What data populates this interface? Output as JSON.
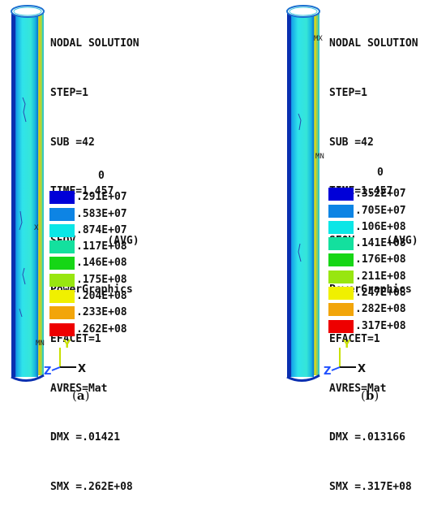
{
  "panels": [
    {
      "id": "a",
      "header": [
        "NODAL SOLUTION",
        "STEP=1",
        "SUB =42",
        "TIME=1.457",
        "SEQV     (AVG)",
        "PowerGraphics",
        "EFACET=1",
        "AVRES=Mat",
        "DMX =.01421",
        "SMX =.262E+08"
      ],
      "legend": [
        "0",
        ".291E+07",
        ".583E+07",
        ".874E+07",
        ".117E+08",
        ".146E+08",
        ".175E+08",
        ".204E+08",
        ".233E+08",
        ".262E+08"
      ],
      "caption_label": "a",
      "markers": {
        "mx": "X",
        "mn": "MN"
      }
    },
    {
      "id": "b",
      "header": [
        "NODAL SOLUTION",
        "STEP=1",
        "SUB =42",
        "TIME=1.457",
        "SEQV     (AVG)",
        "PowerGraphics",
        "EFACET=1",
        "AVRES=Mat",
        "DMX =.013166",
        "SMX =.317E+08"
      ],
      "legend": [
        "0",
        ".352E+07",
        ".705E+07",
        ".106E+08",
        ".141E+08",
        ".176E+08",
        ".211E+08",
        ".247E+08",
        ".282E+08",
        ".317E+08"
      ],
      "caption_label": "b",
      "markers": {
        "mx": "MX",
        "mn": "MN"
      }
    }
  ],
  "legend_colors": [
    "#0000d8",
    "#0d84e4",
    "#0be6e6",
    "#13e09e",
    "#16d616",
    "#98e610",
    "#f0f000",
    "#f2a50a",
    "#ee0000"
  ],
  "axis_labels": {
    "x": "X",
    "y": "Y",
    "z": "Z"
  },
  "caption_parens": {
    "open": "(",
    "close": ")"
  }
}
